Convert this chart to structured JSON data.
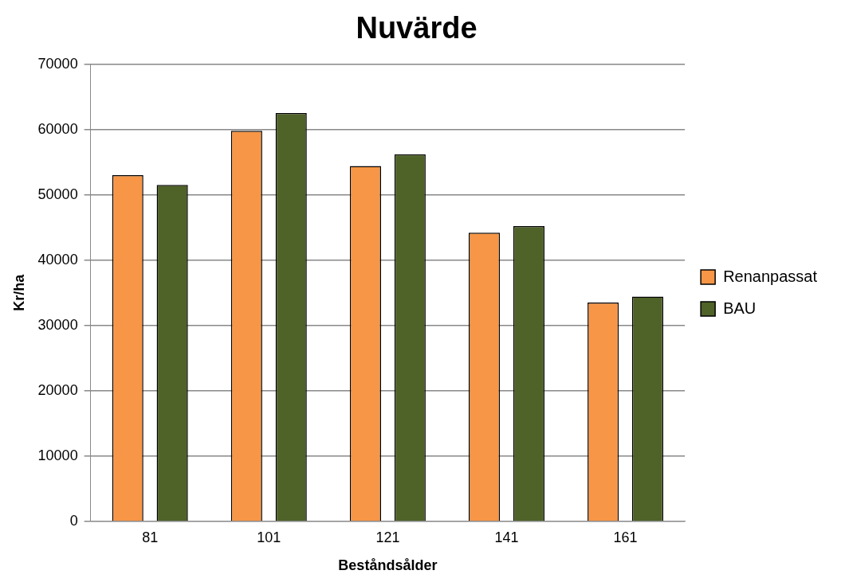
{
  "chart_data": {
    "type": "bar",
    "title": "Nuvärde",
    "xlabel": "Beståndsålder",
    "ylabel": "Kr/ha",
    "categories": [
      "81",
      "101",
      "121",
      "141",
      "161"
    ],
    "series": [
      {
        "name": "Renanpassat",
        "color": "#f79646",
        "values": [
          53000,
          59800,
          54400,
          44200,
          33500
        ]
      },
      {
        "name": "BAU",
        "color": "#4f6228",
        "values": [
          51500,
          62500,
          56200,
          45200,
          34400
        ]
      }
    ],
    "ylim": [
      0,
      70000
    ],
    "yticks": [
      0,
      10000,
      20000,
      30000,
      40000,
      50000,
      60000,
      70000
    ],
    "grid": "y",
    "legend": "right"
  }
}
